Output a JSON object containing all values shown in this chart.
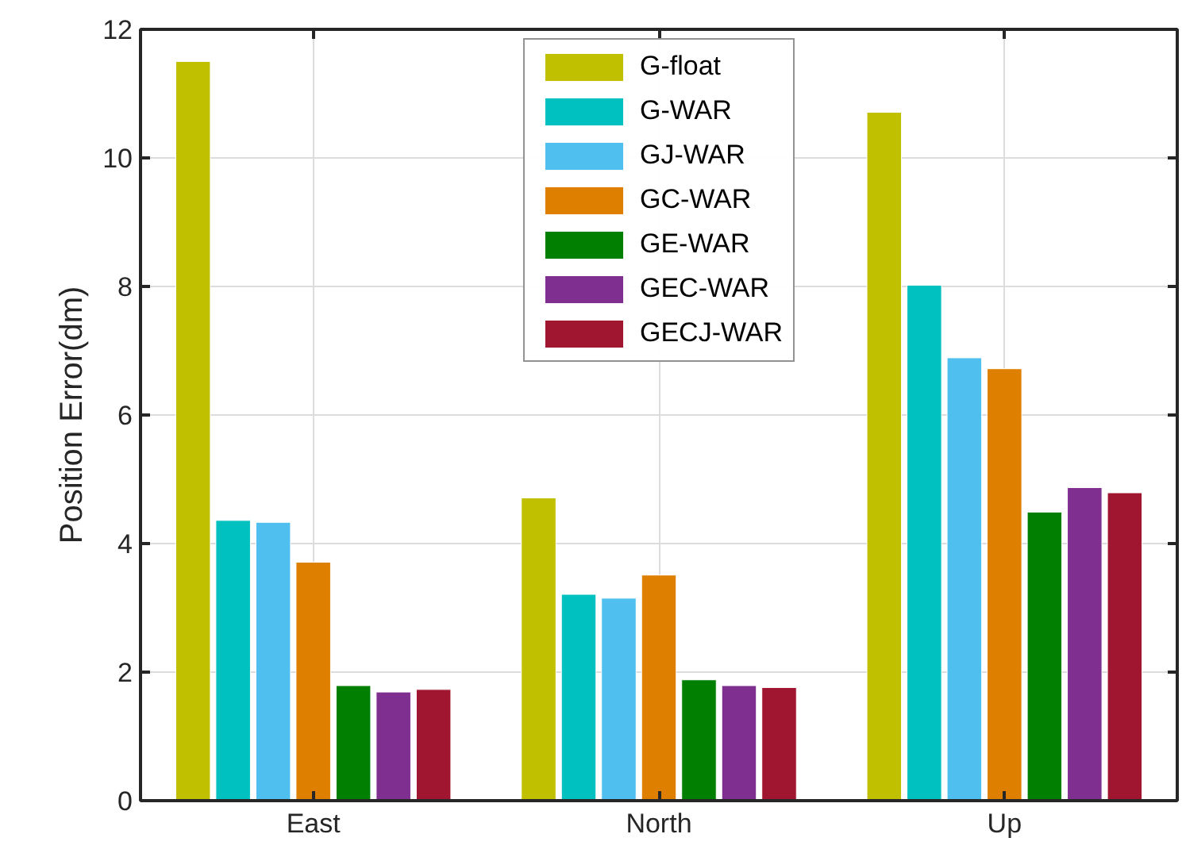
{
  "chart_data": {
    "type": "bar",
    "ylabel": "Position Error(dm)",
    "categories": [
      "East",
      "North",
      "Up"
    ],
    "series": [
      {
        "name": "G-float",
        "color": "#c0c000",
        "values": [
          11.5,
          4.71,
          10.71
        ]
      },
      {
        "name": "G-WAR",
        "color": "#00c0c0",
        "values": [
          4.36,
          3.21,
          8.02
        ]
      },
      {
        "name": "GJ-WAR",
        "color": "#4fbfef",
        "values": [
          4.33,
          3.15,
          6.89
        ]
      },
      {
        "name": "GC-WAR",
        "color": "#df7f00",
        "values": [
          3.71,
          3.51,
          6.72
        ]
      },
      {
        "name": "GE-WAR",
        "color": "#007f00",
        "values": [
          1.79,
          1.88,
          4.49
        ]
      },
      {
        "name": "GEC-WAR",
        "color": "#7f2f8f",
        "values": [
          1.69,
          1.79,
          4.87
        ]
      },
      {
        "name": "GECJ-WAR",
        "color": "#a01530",
        "values": [
          1.73,
          1.76,
          4.79
        ]
      }
    ],
    "ylim": [
      0,
      12
    ],
    "yticks": [
      0,
      2,
      4,
      6,
      8,
      10,
      12
    ],
    "grid": true,
    "legend": "top"
  }
}
